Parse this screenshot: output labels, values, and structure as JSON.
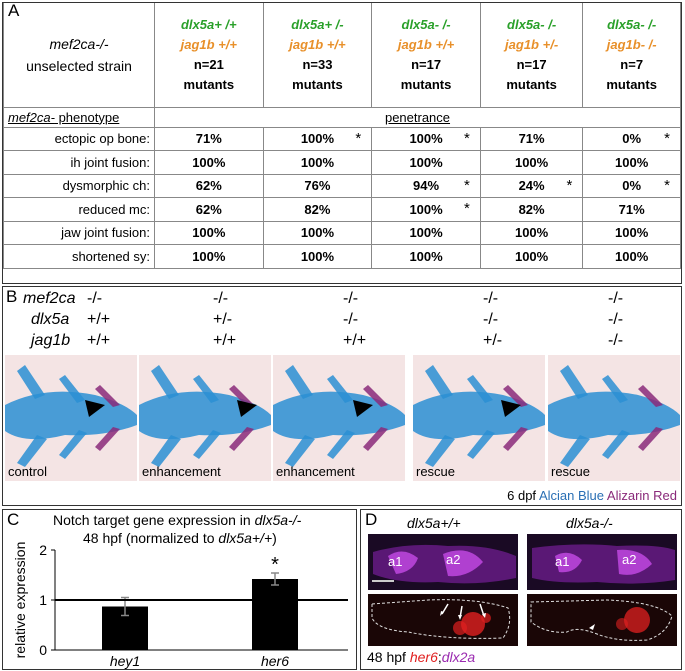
{
  "panelA": {
    "label": "A",
    "corner": {
      "line1": "mef2ca-/-",
      "line2": "unselected strain"
    },
    "columns": [
      {
        "dlx": "dlx5a+ /+",
        "jag": "jag1b +/+",
        "n": "n=21",
        "m": "mutants"
      },
      {
        "dlx": "dlx5a+ /-",
        "jag": "jag1b +/+",
        "n": "n=33",
        "m": "mutants"
      },
      {
        "dlx": "dlx5a- /-",
        "jag": "jag1b +/+",
        "n": "n=17",
        "m": "mutants"
      },
      {
        "dlx": "dlx5a- /-",
        "jag": "jag1b +/-",
        "n": "n=17",
        "m": "mutants"
      },
      {
        "dlx": "dlx5a- /-",
        "jag": "jag1b- /-",
        "n": "n=7",
        "m": "mutants"
      }
    ],
    "phenotype_header": "mef2ca-",
    "phenotype_header_rest": " phenotype",
    "penetrance": "penetrance",
    "rows": [
      {
        "name": "ectopic op bone:",
        "vals": [
          "71%",
          "100%",
          "100%",
          "71%",
          "0%"
        ],
        "stars": [
          "",
          "*",
          "*",
          "",
          "*"
        ]
      },
      {
        "name": "ih joint fusion:",
        "vals": [
          "100%",
          "100%",
          "100%",
          "100%",
          "100%"
        ],
        "stars": [
          "",
          "",
          "",
          "",
          ""
        ]
      },
      {
        "name": "dysmorphic ch:",
        "vals": [
          "62%",
          "76%",
          "94%",
          "24%",
          "0%"
        ],
        "stars": [
          "",
          "",
          "*",
          "*",
          "*"
        ]
      },
      {
        "name": "reduced mc:",
        "vals": [
          "62%",
          "82%",
          "100%",
          "82%",
          "71%"
        ],
        "stars": [
          "",
          "",
          "*",
          "",
          ""
        ]
      },
      {
        "name": "jaw joint fusion:",
        "vals": [
          "100%",
          "100%",
          "100%",
          "100%",
          "100%"
        ],
        "stars": [
          "",
          "",
          "",
          "",
          ""
        ]
      },
      {
        "name": "shortened sy:",
        "vals": [
          "100%",
          "100%",
          "100%",
          "100%",
          "100%"
        ],
        "stars": [
          "",
          "",
          "",
          "",
          ""
        ]
      }
    ]
  },
  "panelB": {
    "label": "B",
    "gene_names": [
      "mef2ca",
      "dlx5a",
      "jag1b"
    ],
    "genotypes": [
      [
        "-/-",
        "+/+",
        "+/+"
      ],
      [
        "-/-",
        "+/-",
        "+/+"
      ],
      [
        "-/-",
        "-/-",
        "+/+"
      ],
      [
        "-/-",
        "-/-",
        "+/-"
      ],
      [
        "-/-",
        "-/-",
        "-/-"
      ]
    ],
    "captions": [
      "control",
      "enhancement",
      "enhancement",
      "rescue",
      "rescue"
    ],
    "stain_dpf": "6 dpf",
    "stain_blue": "Alcian Blue",
    "stain_red": "Alizarin Red",
    "colors": {
      "blue": "#2a8fd4",
      "red": "#8a2a7a"
    }
  },
  "panelC": {
    "label": "C",
    "title_pre": "Notch target gene expression in ",
    "title_gene": "dlx5a-/-",
    "title_line2_pre": "48 hpf (normalized to ",
    "title_line2_gene": "dlx5a+/+",
    "title_line2_post": ")",
    "ylabel": "relative expression",
    "significance": "*",
    "chart_data": {
      "type": "bar",
      "categories": [
        "hey1",
        "her6"
      ],
      "values": [
        0.87,
        1.42
      ],
      "errors": [
        0.18,
        0.12
      ],
      "ylabel": "relative expression",
      "ylim": [
        0,
        2
      ],
      "yticks": [
        "0",
        "1",
        "2"
      ],
      "reference_line": 1
    }
  },
  "panelD": {
    "label": "D",
    "genotype_left": "dlx5a+/+",
    "genotype_right": "dlx5a-/-",
    "arches": [
      "a1",
      "a2",
      "a1",
      "a2"
    ],
    "hpf": "48 hpf",
    "stain1": "her6",
    "sep": ";",
    "stain2": "dlx2a",
    "colors": {
      "her6": "#e02020",
      "dlx2a": "#9a2ab0"
    }
  }
}
